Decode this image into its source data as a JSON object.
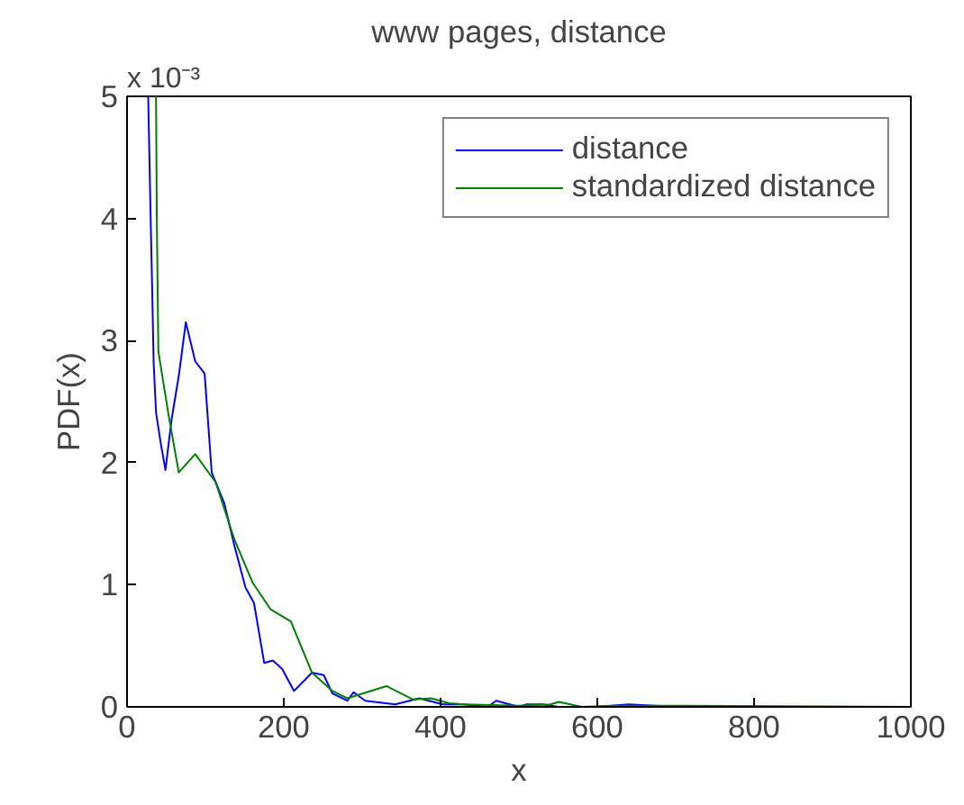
{
  "chart_data": {
    "type": "line",
    "title": "www pages, distance",
    "xlabel": "x",
    "ylabel": "PDF(x)",
    "annotations": [
      "x 10⁻³"
    ],
    "xlim": [
      0,
      1000
    ],
    "xticks": [
      0,
      200,
      400,
      600,
      800,
      1000
    ],
    "ylim": [
      0,
      5
    ],
    "yticks": [
      0,
      1,
      2,
      3,
      4,
      5
    ],
    "grid": false,
    "legend": "top right",
    "marker": "none",
    "line_style": "solid",
    "series": [
      {
        "name": "distance",
        "color": "#0000ff",
        "x": [
          27,
          30,
          32,
          34,
          37,
          43,
          49,
          57,
          66,
          75,
          87,
          99,
          108,
          124,
          137,
          151,
          162,
          175,
          186,
          198,
          213,
          236,
          251,
          262,
          281,
          289,
          304,
          342,
          373,
          403,
          430,
          460,
          471,
          500,
          510,
          530,
          550,
          600,
          640,
          700,
          1000
        ],
        "values": [
          5.0,
          4.04,
          3.45,
          2.81,
          2.41,
          2.16,
          1.94,
          2.36,
          2.71,
          3.15,
          2.83,
          2.73,
          1.92,
          1.67,
          1.32,
          0.98,
          0.85,
          0.36,
          0.38,
          0.31,
          0.13,
          0.28,
          0.26,
          0.11,
          0.05,
          0.12,
          0.05,
          0.02,
          0.07,
          0.02,
          0.02,
          0.0,
          0.05,
          0.0,
          0.02,
          0.02,
          0.0,
          0.0,
          0.02,
          0.0,
          0.0
        ]
      },
      {
        "name": "standardized distance",
        "color": "#008000",
        "x": [
          37,
          38,
          40,
          53,
          66,
          87,
          113,
          137,
          160,
          183,
          209,
          236,
          262,
          281,
          331,
          365,
          388,
          411,
          430,
          500,
          540,
          551,
          580,
          620,
          700,
          1000
        ],
        "values": [
          5.0,
          4.0,
          2.91,
          2.39,
          1.92,
          2.07,
          1.84,
          1.37,
          1.02,
          0.8,
          0.7,
          0.28,
          0.13,
          0.07,
          0.17,
          0.06,
          0.07,
          0.03,
          0.02,
          0.01,
          0.02,
          0.04,
          0.0,
          0.01,
          0.01,
          0.0
        ]
      }
    ]
  }
}
